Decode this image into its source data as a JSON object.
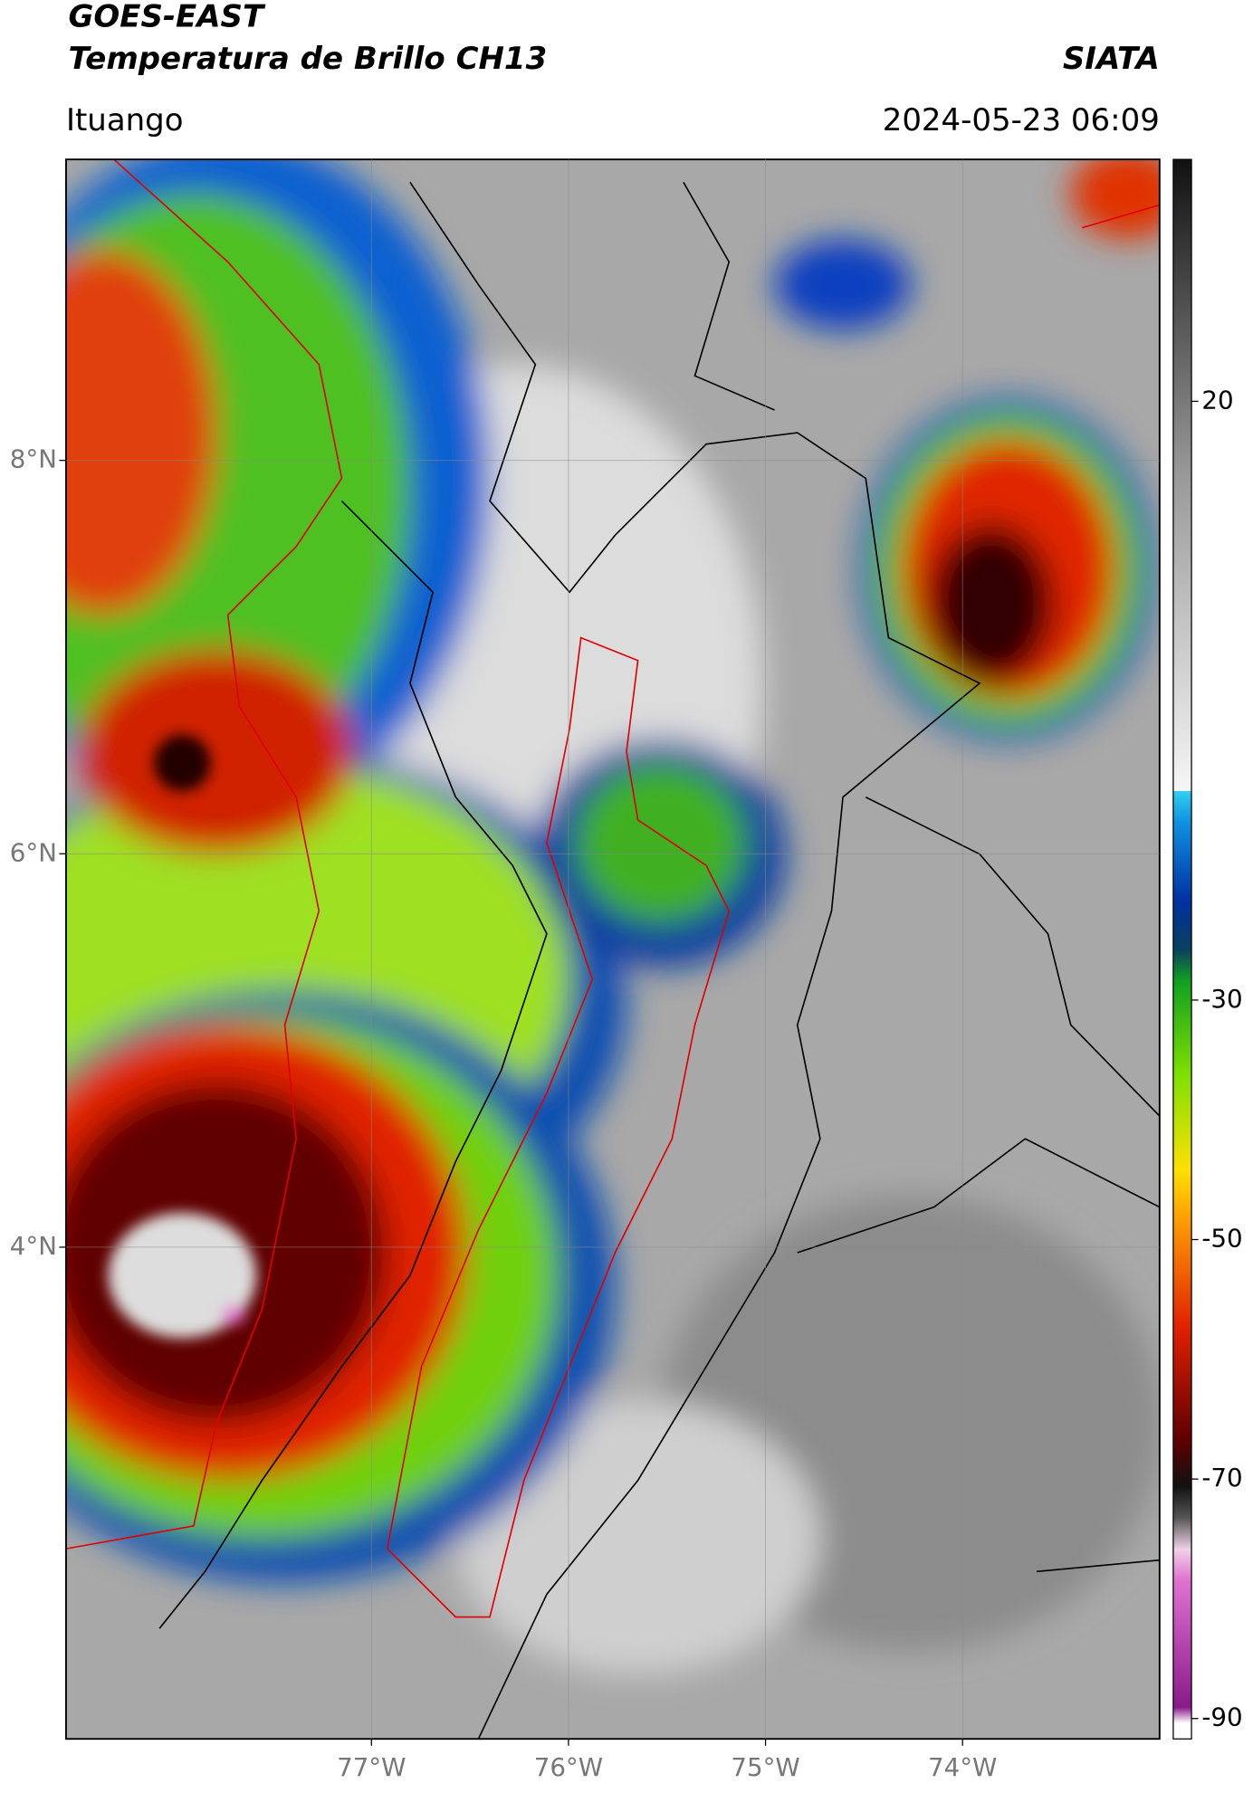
{
  "header": {
    "title": "GOES-EAST",
    "subtitle": "Temperatura de Brillo CH13",
    "brand": "SIATA",
    "location": "Ituango",
    "datetime": "2024-05-23 06:09"
  },
  "map": {
    "xlim": [
      -78.55,
      -73.0
    ],
    "ylim": [
      1.5,
      9.53
    ],
    "yticks": [
      {
        "value": 8,
        "label": "8°N"
      },
      {
        "value": 6,
        "label": "6°N"
      },
      {
        "value": 4,
        "label": "4°N"
      }
    ],
    "xticks": [
      {
        "value": -77,
        "label": "77°W"
      },
      {
        "value": -76,
        "label": "76°W"
      },
      {
        "value": -75,
        "label": "75°W"
      },
      {
        "value": -74,
        "label": "74°W"
      }
    ],
    "grid": true
  },
  "colorbar": {
    "lim": [
      -91.7,
      40.2
    ],
    "ticks": [
      20,
      -30,
      -50,
      -70,
      -90
    ]
  }
}
